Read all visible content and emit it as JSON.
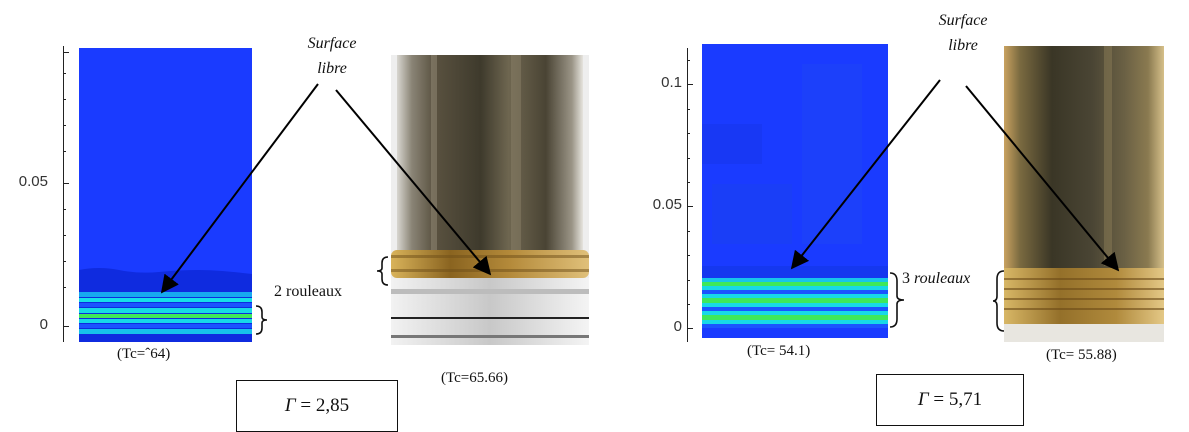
{
  "left": {
    "annotation_line1": "Surface",
    "annotation_line2": "libre",
    "y_ticks": [
      "0.05",
      "0"
    ],
    "sim_caption": "(Tc=ˆ64)",
    "rollers_label": "2 rouleaux",
    "photo_caption": "(Tc=65.66)",
    "gamma_symbol": "Γ",
    "gamma_value": " = 2,85"
  },
  "right": {
    "annotation_line1": "Surface",
    "annotation_line2": "libre",
    "y_ticks": [
      "0.1",
      "0.05",
      "0"
    ],
    "sim_caption": "(Tc= 54.1)",
    "rollers_number": "3",
    "rollers_word": "rouleaux",
    "photo_caption": "(Tc= 55.88)",
    "gamma_symbol": "Γ",
    "gamma_value": " = 5,71"
  },
  "colors": {
    "sim_background": "#1a3bff",
    "roller_cyan": "#17d9e8",
    "roller_green": "#3fe85a",
    "photo_metal": "#5a5240",
    "photo_brass": "#a07a2a"
  }
}
